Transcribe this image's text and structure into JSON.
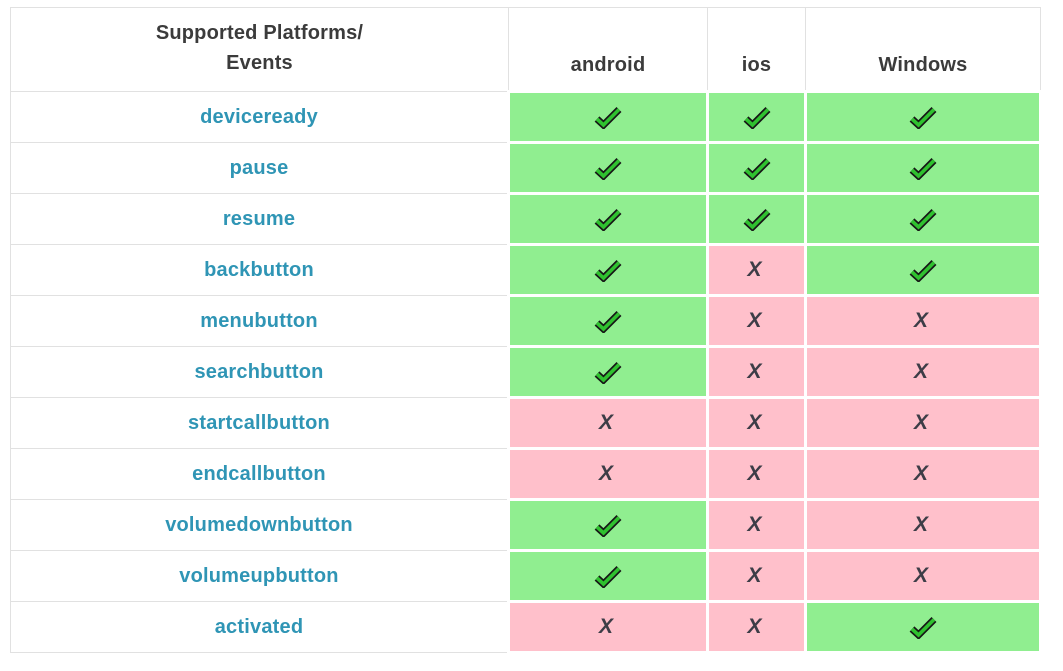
{
  "table": {
    "header": {
      "events_title_line1": "Supported Platforms/",
      "events_title_line2": "Events",
      "platforms": [
        "android",
        "ios",
        "Windows"
      ]
    },
    "rows": [
      {
        "event": "deviceready",
        "android": true,
        "ios": true,
        "windows": true
      },
      {
        "event": "pause",
        "android": true,
        "ios": true,
        "windows": true
      },
      {
        "event": "resume",
        "android": true,
        "ios": true,
        "windows": true
      },
      {
        "event": "backbutton",
        "android": true,
        "ios": false,
        "windows": true
      },
      {
        "event": "menubutton",
        "android": true,
        "ios": false,
        "windows": false
      },
      {
        "event": "searchbutton",
        "android": true,
        "ios": false,
        "windows": false
      },
      {
        "event": "startcallbutton",
        "android": false,
        "ios": false,
        "windows": false
      },
      {
        "event": "endcallbutton",
        "android": false,
        "ios": false,
        "windows": false
      },
      {
        "event": "volumedownbutton",
        "android": true,
        "ios": false,
        "windows": false
      },
      {
        "event": "volumeupbutton",
        "android": true,
        "ios": false,
        "windows": false
      },
      {
        "event": "activated",
        "android": false,
        "ios": false,
        "windows": true
      }
    ]
  },
  "icons": {
    "supported": "check-icon",
    "unsupported": "x-icon",
    "x_glyph": "X"
  },
  "colors": {
    "supported_bg": "#90ee90",
    "unsupported_bg": "#ffc0cb",
    "event_link": "#2f95b5",
    "header_text": "#3b3b3b",
    "border": "#e1e1e1",
    "x_mark": "#3d3d47",
    "check_green": "#2fc12f",
    "check_outline": "#161616"
  }
}
